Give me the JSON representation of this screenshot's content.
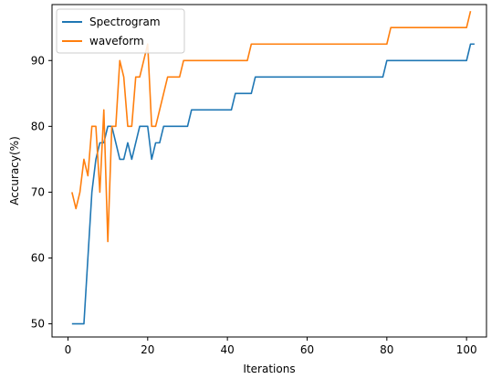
{
  "chart_data": {
    "type": "line",
    "title": "",
    "xlabel": "Iterations",
    "ylabel": "Accuracy(%)",
    "xlim": [
      -4,
      105
    ],
    "ylim": [
      48,
      98.5
    ],
    "x_ticks": [
      0,
      20,
      40,
      60,
      80,
      100
    ],
    "y_ticks": [
      50,
      60,
      70,
      80,
      90
    ],
    "grid": false,
    "legend_position": "top-left",
    "series": [
      {
        "name": "Spectrogram",
        "color": "#1f77b4",
        "points": [
          [
            1,
            50
          ],
          [
            2,
            50
          ],
          [
            3,
            50
          ],
          [
            4,
            50
          ],
          [
            5,
            60
          ],
          [
            6,
            70
          ],
          [
            7,
            75
          ],
          [
            8,
            77.5
          ],
          [
            9,
            77.5
          ],
          [
            10,
            80
          ],
          [
            11,
            80
          ],
          [
            12,
            77.5
          ],
          [
            13,
            75
          ],
          [
            14,
            75
          ],
          [
            15,
            77.5
          ],
          [
            16,
            75
          ],
          [
            17,
            77.5
          ],
          [
            18,
            80
          ],
          [
            19,
            80
          ],
          [
            20,
            80
          ],
          [
            21,
            75
          ],
          [
            22,
            77.5
          ],
          [
            23,
            77.5
          ],
          [
            24,
            80
          ],
          [
            25,
            80
          ],
          [
            30,
            80
          ],
          [
            31,
            82.5
          ],
          [
            35,
            82.5
          ],
          [
            41,
            82.5
          ],
          [
            42,
            85
          ],
          [
            46,
            85
          ],
          [
            47,
            87.5
          ],
          [
            60,
            87.5
          ],
          [
            79,
            87.5
          ],
          [
            80,
            90
          ],
          [
            90,
            90
          ],
          [
            100,
            90
          ],
          [
            101,
            92.5
          ],
          [
            102,
            92.5
          ]
        ]
      },
      {
        "name": "waveform",
        "color": "#ff7f0e",
        "points": [
          [
            1,
            70
          ],
          [
            2,
            67.5
          ],
          [
            3,
            70
          ],
          [
            4,
            75
          ],
          [
            5,
            72.5
          ],
          [
            6,
            80
          ],
          [
            7,
            80
          ],
          [
            8,
            70
          ],
          [
            9,
            82.5
          ],
          [
            10,
            62.5
          ],
          [
            11,
            80
          ],
          [
            12,
            80
          ],
          [
            13,
            90
          ],
          [
            14,
            87.5
          ],
          [
            15,
            80
          ],
          [
            16,
            80
          ],
          [
            17,
            87.5
          ],
          [
            18,
            87.5
          ],
          [
            19,
            90
          ],
          [
            20,
            92.5
          ],
          [
            21,
            80
          ],
          [
            22,
            80
          ],
          [
            23,
            82.5
          ],
          [
            24,
            85
          ],
          [
            25,
            87.5
          ],
          [
            26,
            87.5
          ],
          [
            28,
            87.5
          ],
          [
            29,
            90
          ],
          [
            35,
            90
          ],
          [
            40,
            90
          ],
          [
            45,
            90
          ],
          [
            46,
            92.5
          ],
          [
            60,
            92.5
          ],
          [
            79,
            92.5
          ],
          [
            80,
            92.5
          ],
          [
            81,
            95
          ],
          [
            90,
            95
          ],
          [
            100,
            95
          ],
          [
            101,
            97.5
          ]
        ]
      }
    ]
  }
}
